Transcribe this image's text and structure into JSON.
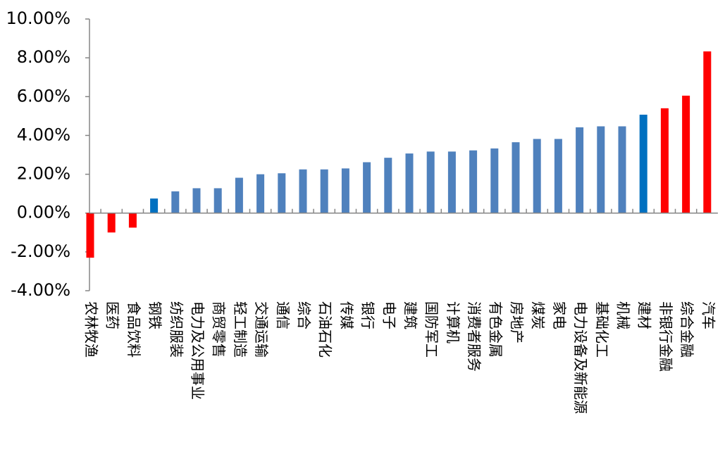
{
  "chart_data": {
    "type": "bar",
    "categories": [
      "农林牧渔",
      "医药",
      "食品饮料",
      "钢铁",
      "纺织服装",
      "电力及公用事业",
      "商贸零售",
      "轻工制造",
      "交通运输",
      "通信",
      "综合",
      "石油石化",
      "传媒",
      "银行",
      "电子",
      "建筑",
      "国防军工",
      "计算机",
      "消费者服务",
      "有色金属",
      "房地产",
      "煤炭",
      "家电",
      "电力设备及新能源",
      "基础化工",
      "机械",
      "建材",
      "非银行金融",
      "综合金融",
      "汽车"
    ],
    "values": [
      -2.3,
      -1.0,
      -0.75,
      0.75,
      1.12,
      1.28,
      1.28,
      1.82,
      2.0,
      2.05,
      2.25,
      2.25,
      2.3,
      2.62,
      2.85,
      3.07,
      3.17,
      3.17,
      3.23,
      3.33,
      3.65,
      3.82,
      3.82,
      4.42,
      4.47,
      4.47,
      5.07,
      5.4,
      6.05,
      8.33
    ],
    "colors": [
      "#ff0000",
      "#ff0000",
      "#ff0000",
      "#0070c0",
      "#4f81bd",
      "#4f81bd",
      "#4f81bd",
      "#4f81bd",
      "#4f81bd",
      "#4f81bd",
      "#4f81bd",
      "#4f81bd",
      "#4f81bd",
      "#4f81bd",
      "#4f81bd",
      "#4f81bd",
      "#4f81bd",
      "#4f81bd",
      "#4f81bd",
      "#4f81bd",
      "#4f81bd",
      "#4f81bd",
      "#4f81bd",
      "#4f81bd",
      "#4f81bd",
      "#4f81bd",
      "#0070c0",
      "#ff0000",
      "#ff0000",
      "#ff0000"
    ],
    "ylim": [
      -4,
      10
    ],
    "yticks": [
      {
        "value": -4,
        "label": "-4.00%"
      },
      {
        "value": -2,
        "label": "-2.00%"
      },
      {
        "value": 0,
        "label": "0.00%"
      },
      {
        "value": 2,
        "label": "2.00%"
      },
      {
        "value": 4,
        "label": "4.00%"
      },
      {
        "value": 6,
        "label": "6.00%"
      },
      {
        "value": 8,
        "label": "8.00%"
      },
      {
        "value": 10,
        "label": "10.00%"
      }
    ]
  }
}
